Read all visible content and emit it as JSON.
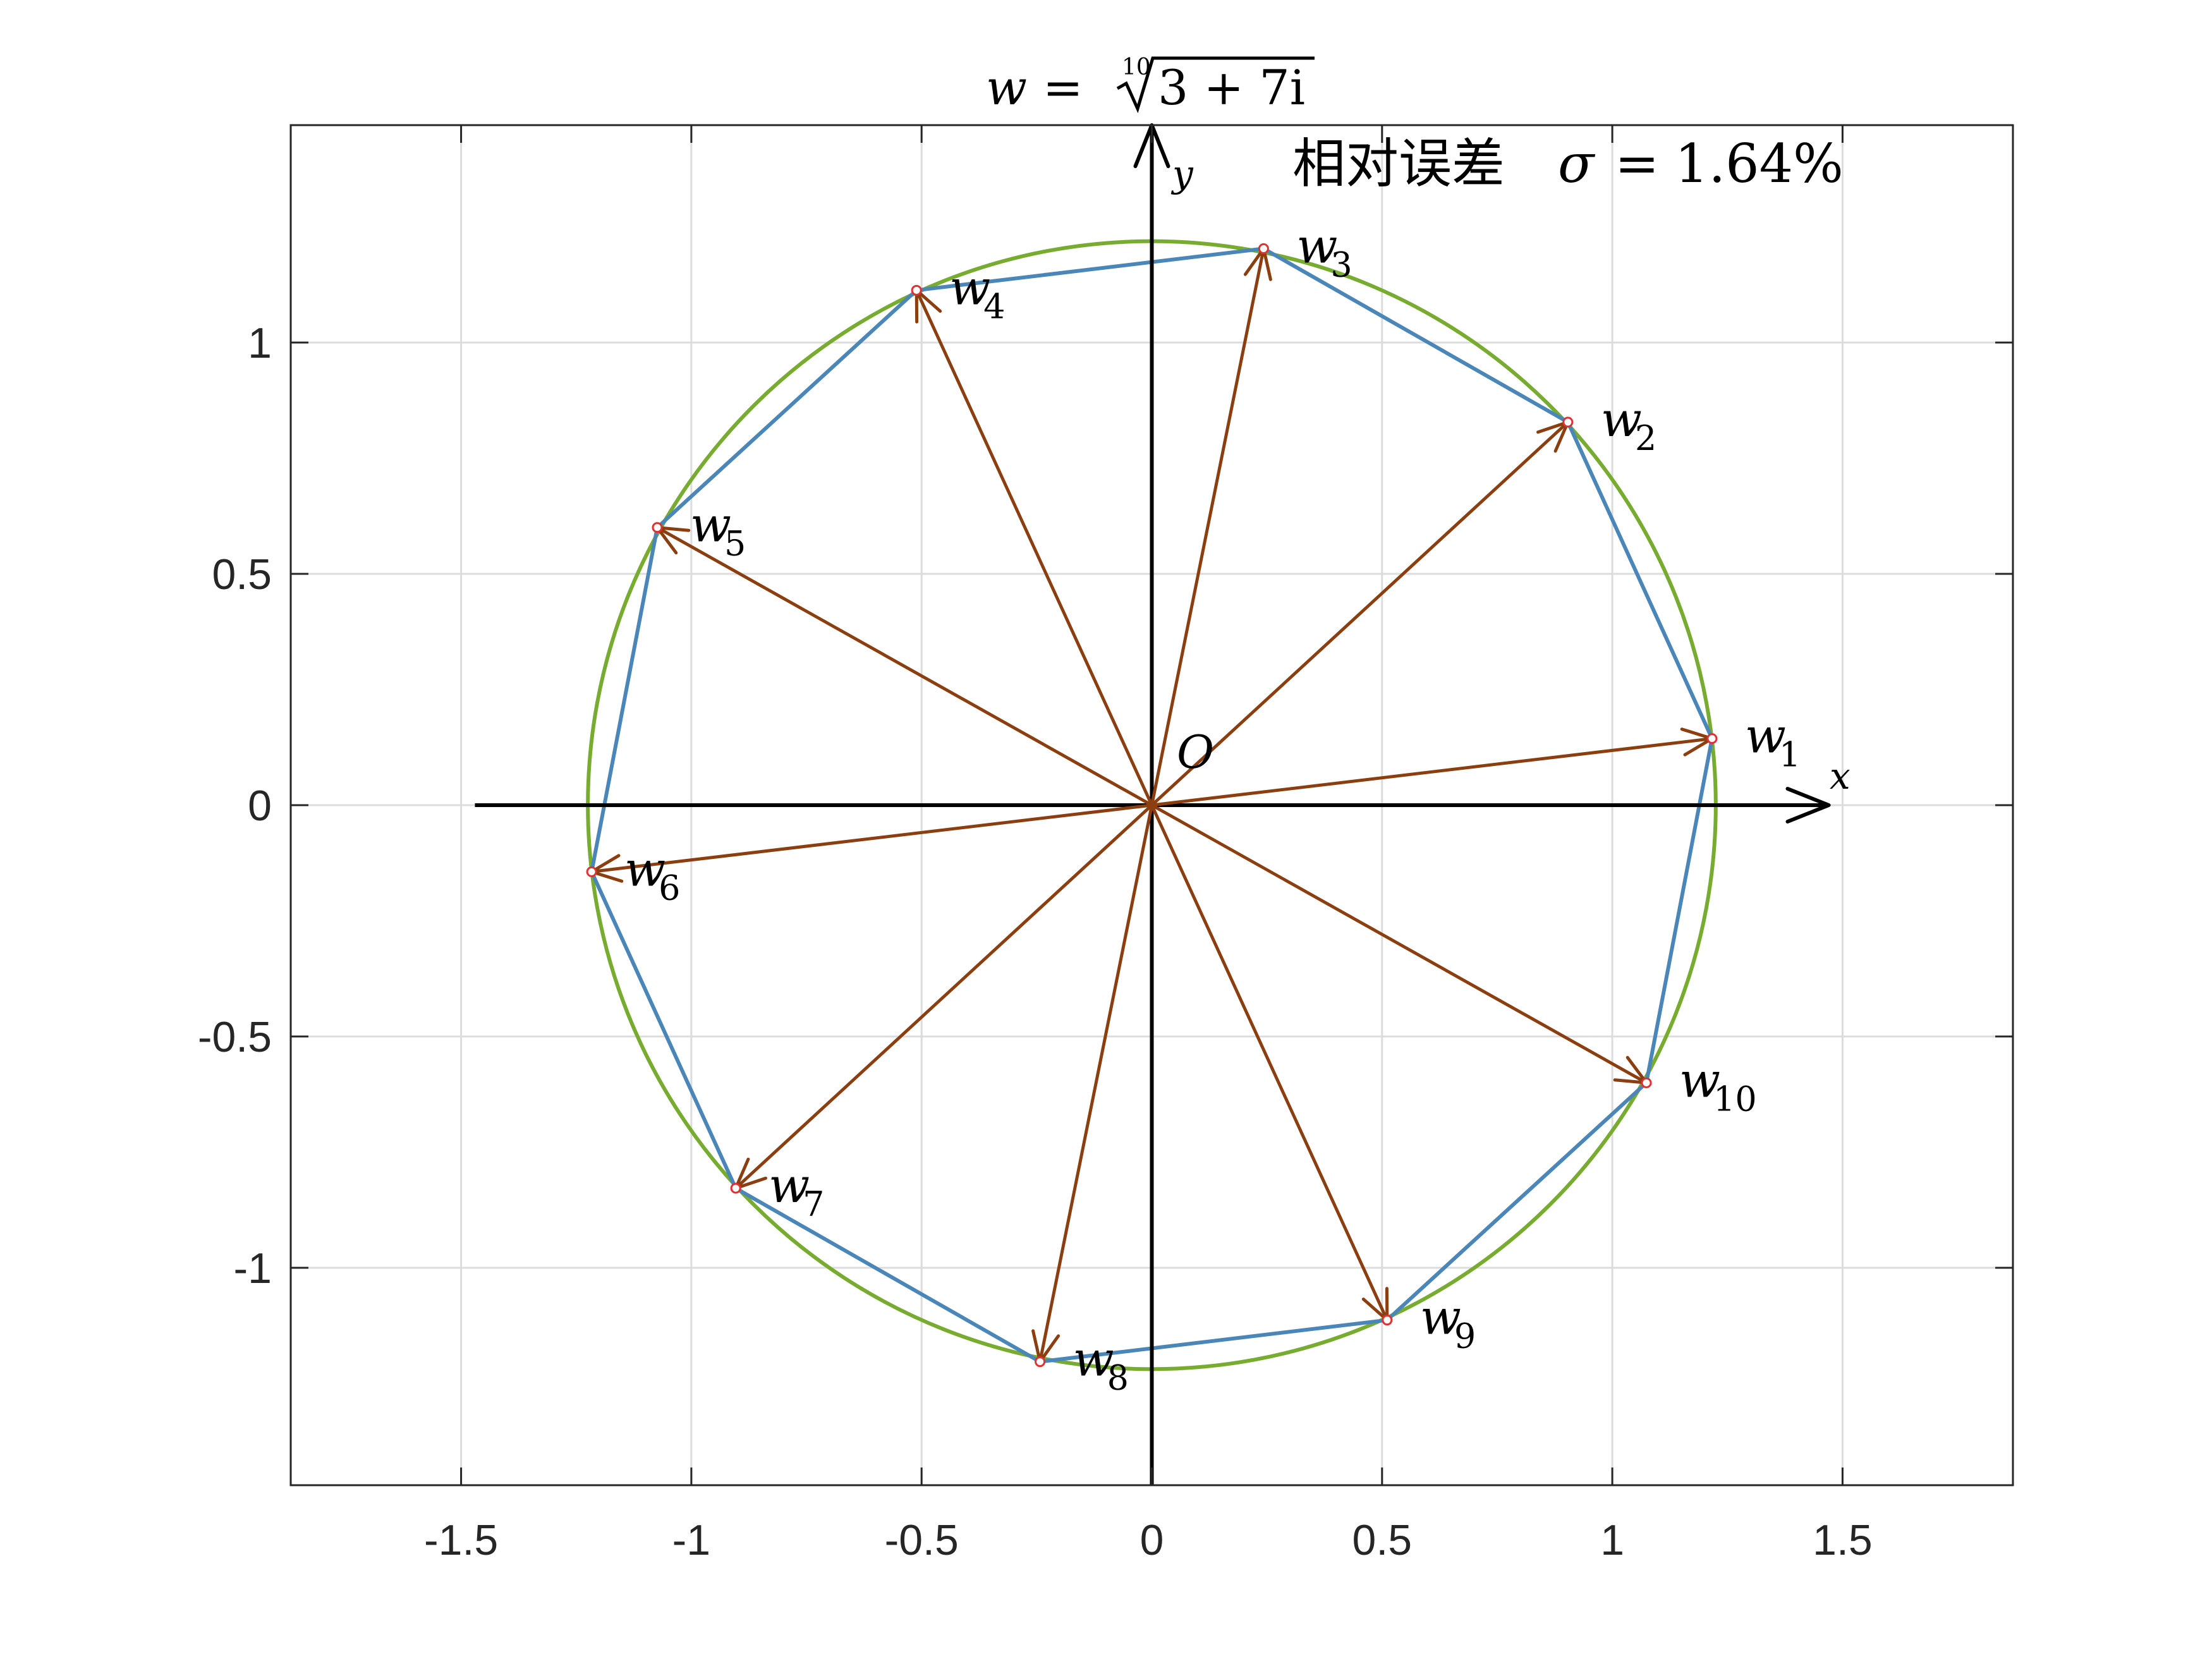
{
  "chart_data": {
    "type": "line",
    "title": {
      "lhs": "w",
      "eq": "=",
      "root_index": "10",
      "radicand": "3 + 7i"
    },
    "xlim": [
      -1.87,
      1.87
    ],
    "ylim": [
      -1.47,
      1.47
    ],
    "x_ticks": [
      -1.5,
      -1,
      -0.5,
      0,
      0.5,
      1,
      1.5
    ],
    "x_tick_labels": [
      "-1.5",
      "-1",
      "-0.5",
      "0",
      "0.5",
      "1",
      "1.5"
    ],
    "y_ticks": [
      -1,
      -0.5,
      0,
      0.5,
      1
    ],
    "y_tick_labels": [
      "-1",
      "-0.5",
      "0",
      "0.5",
      "1"
    ],
    "grid": true,
    "axis_labels": {
      "x": "x",
      "y": "y",
      "origin": "O"
    },
    "annotation": {
      "prefix": "相对误差",
      "symbol": "σ",
      "eq": "=",
      "value": "1.64%"
    },
    "circle": {
      "center": [
        0,
        0
      ],
      "radius": 1.2247
    },
    "axes_arrows": {
      "x_range": [
        -1.47,
        1.47
      ],
      "y_range": [
        -1.47,
        1.47
      ]
    },
    "roots": [
      {
        "label": "w",
        "index": "1",
        "x": 1.2166,
        "y": 0.144
      },
      {
        "label": "w",
        "index": "2",
        "x": 0.9036,
        "y": 0.828
      },
      {
        "label": "w",
        "index": "3",
        "x": 0.2428,
        "y": 1.203
      },
      {
        "label": "w",
        "index": "4",
        "x": -0.511,
        "y": 1.113
      },
      {
        "label": "w",
        "index": "5",
        "x": -1.074,
        "y": 0.6002
      },
      {
        "label": "w",
        "index": "6",
        "x": -1.2166,
        "y": -0.144
      },
      {
        "label": "w",
        "index": "7",
        "x": -0.9036,
        "y": -0.828
      },
      {
        "label": "w",
        "index": "8",
        "x": -0.2428,
        "y": -1.203
      },
      {
        "label": "w",
        "index": "9",
        "x": 0.511,
        "y": -1.113
      },
      {
        "label": "w",
        "index": "10",
        "x": 1.074,
        "y": -0.6002
      }
    ],
    "colors": {
      "circle": "#77ac30",
      "polygon": "#4a86b8",
      "vectors": "#8b3f10",
      "points": "#e03030",
      "axes": "#000000",
      "grid": "#dcdcdc",
      "frame": "#262626"
    }
  }
}
